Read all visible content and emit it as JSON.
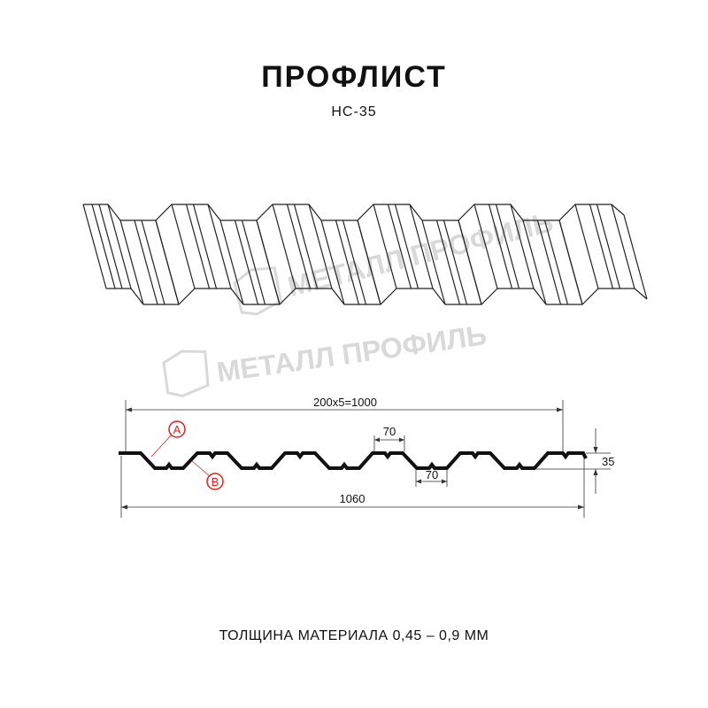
{
  "header": {
    "title": "ПРОФЛИСТ",
    "model": "НС-35"
  },
  "watermark": {
    "text": "МЕТАЛЛ ПРОФИЛЬ"
  },
  "drawing": {
    "overall_pitch_label": "200x5=1000",
    "top_rib_width": "70",
    "bottom_rib_width": "70",
    "height": "35",
    "total_width": "1060",
    "marker_a": "A",
    "marker_b": "B"
  },
  "colors": {
    "line": "#111111",
    "marker": "#e02020",
    "watermark": "#d9d9d9"
  },
  "footer": {
    "thickness": "ТОЛЩИНА МАТЕРИАЛА 0,45 – 0,9 ММ"
  }
}
